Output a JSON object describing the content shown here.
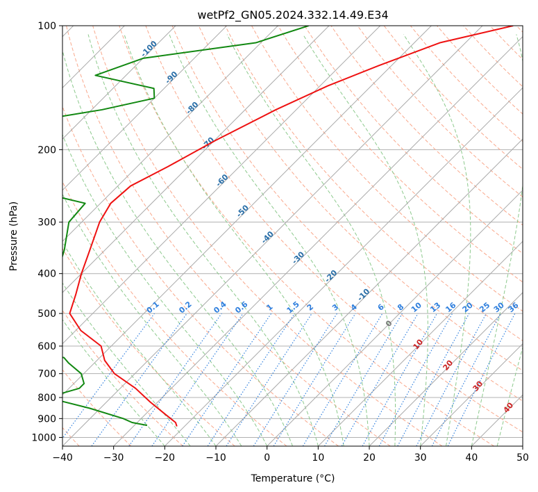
{
  "chart_data": {
    "type": "line",
    "title": "wetPf2_GN05.2024.332.14.49.E34",
    "xlabel": "Temperature (°C)",
    "ylabel": "Pressure (hPa)",
    "xlim": [
      -40,
      50
    ],
    "ylim": [
      1050,
      100
    ],
    "y_scale": "log",
    "grid": true,
    "x_ticks": [
      -40,
      -30,
      -20,
      -10,
      0,
      10,
      20,
      30,
      40,
      50
    ],
    "y_ticks": [
      100,
      200,
      300,
      400,
      500,
      600,
      700,
      800,
      900,
      1000
    ],
    "colors": {
      "temperature": "#ee1111",
      "dewpoint": "#118811",
      "isotherm": "#aaaaaa",
      "dry_adiabat": "#f9a88c",
      "moist_adiabat": "#8cc98c",
      "mixing_ratio": "#2f7fdd",
      "dry_adiabat_label": "#cc2222",
      "moist_adiabat_label": "#777777",
      "isotherm_label": "#2a6fa8"
    },
    "isotherm_labels": [
      "-100",
      "-90",
      "-80",
      "-70",
      "-60",
      "-50",
      "-40",
      "-30",
      "-20",
      "-10"
    ],
    "mixing_ratio_labels": [
      "0.1",
      "0.2",
      "0.4",
      "0.6",
      "1",
      "1.5",
      "2",
      "3",
      "4",
      "6",
      "8",
      "10",
      "13",
      "16",
      "20",
      "25",
      "30",
      "36"
    ],
    "dry_adiabat_labels": [
      "10",
      "20",
      "30",
      "40"
    ],
    "moist_adiabat_labels": [
      "0"
    ],
    "series": [
      {
        "name": "temperature",
        "points": [
          [
            100,
            -34.0
          ],
          [
            110,
            -45.0
          ],
          [
            125,
            -52.5
          ],
          [
            140,
            -58.5
          ],
          [
            160,
            -64.0
          ],
          [
            190,
            -69.8
          ],
          [
            220,
            -74.0
          ],
          [
            245,
            -77.5
          ],
          [
            270,
            -78.0
          ],
          [
            300,
            -76.5
          ],
          [
            350,
            -73.0
          ],
          [
            400,
            -70.0
          ],
          [
            450,
            -67.0
          ],
          [
            500,
            -64.5
          ],
          [
            550,
            -59.0
          ],
          [
            600,
            -52.0
          ],
          [
            650,
            -48.5
          ],
          [
            700,
            -44.0
          ],
          [
            760,
            -37.0
          ],
          [
            820,
            -31.5
          ],
          [
            880,
            -26.0
          ],
          [
            920,
            -22.5
          ],
          [
            940,
            -21.5
          ]
        ]
      },
      {
        "name": "dewpoint",
        "points": [
          [
            100,
            -74.0
          ],
          [
            110,
            -81.0
          ],
          [
            120,
            -100.0
          ],
          [
            132,
            -106.0
          ],
          [
            142,
            -92.0
          ],
          [
            150,
            -90.0
          ],
          [
            160,
            -98.0
          ],
          [
            175,
            -114.0
          ],
          [
            185,
            -119.0
          ],
          [
            190,
            -112.0
          ],
          [
            200,
            -103.0
          ],
          [
            210,
            -100.0
          ],
          [
            228,
            -100.0
          ],
          [
            250,
            -97.0
          ],
          [
            270,
            -83.0
          ],
          [
            300,
            -82.5
          ],
          [
            350,
            -78.0
          ],
          [
            380,
            -76.0
          ],
          [
            400,
            -82.0
          ],
          [
            430,
            -101.0
          ],
          [
            450,
            -132.0
          ],
          [
            460,
            -129.0
          ],
          [
            480,
            -110.0
          ],
          [
            500,
            -104.5
          ],
          [
            520,
            -104.0
          ],
          [
            550,
            -106.0
          ],
          [
            575,
            -97.0
          ],
          [
            600,
            -72.0
          ],
          [
            640,
            -57.0
          ],
          [
            660,
            -55.0
          ],
          [
            700,
            -50.5
          ],
          [
            740,
            -48.0
          ],
          [
            760,
            -48.0
          ],
          [
            800,
            -52.5
          ],
          [
            850,
            -42.0
          ],
          [
            900,
            -33.5
          ],
          [
            920,
            -31.0
          ],
          [
            935,
            -27.5
          ]
        ]
      }
    ]
  }
}
